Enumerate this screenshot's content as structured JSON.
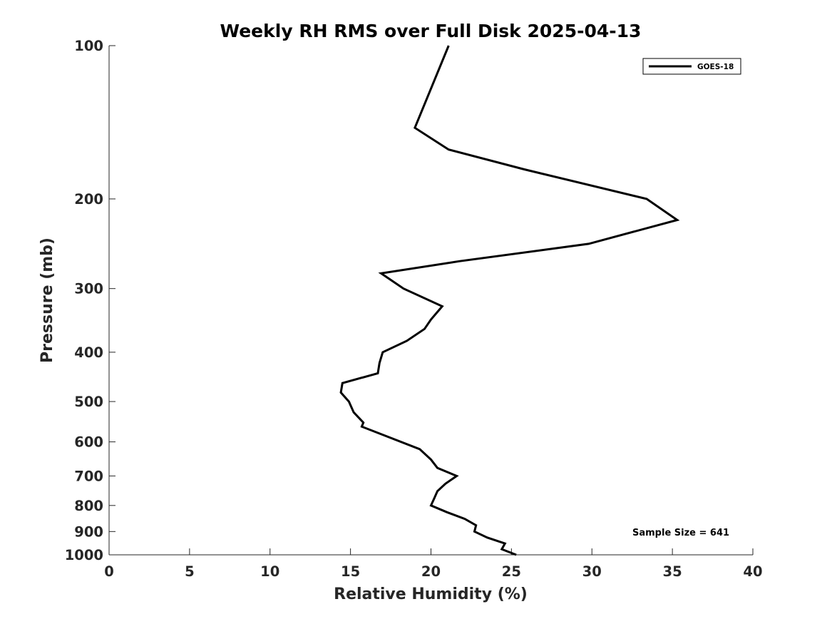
{
  "chart_data": {
    "type": "line",
    "title": "Weekly RH RMS over Full Disk 2025-04-13",
    "xlabel": "Relative Humidity (%)",
    "ylabel": "Pressure (mb)",
    "xlim": [
      0,
      40
    ],
    "ylim": [
      1000,
      100
    ],
    "yscale": "log",
    "grid": false,
    "xticks": [
      0,
      5,
      10,
      15,
      20,
      25,
      30,
      35,
      40
    ],
    "yticks": [
      100,
      200,
      300,
      400,
      500,
      600,
      700,
      800,
      900,
      1000
    ],
    "legend_position": "top-right",
    "annotation": "Sample Size = 641",
    "series": [
      {
        "name": "GOES-18",
        "color": "#000000",
        "points": [
          {
            "x": 25.3,
            "p": 1000
          },
          {
            "x": 24.4,
            "p": 975
          },
          {
            "x": 24.6,
            "p": 950
          },
          {
            "x": 23.5,
            "p": 925
          },
          {
            "x": 22.7,
            "p": 900
          },
          {
            "x": 22.8,
            "p": 875
          },
          {
            "x": 22.1,
            "p": 850
          },
          {
            "x": 21.0,
            "p": 825
          },
          {
            "x": 20.0,
            "p": 800
          },
          {
            "x": 20.2,
            "p": 775
          },
          {
            "x": 20.4,
            "p": 750
          },
          {
            "x": 20.9,
            "p": 725
          },
          {
            "x": 21.6,
            "p": 700
          },
          {
            "x": 20.4,
            "p": 675
          },
          {
            "x": 20.0,
            "p": 650
          },
          {
            "x": 19.3,
            "p": 620
          },
          {
            "x": 15.7,
            "p": 560
          },
          {
            "x": 15.8,
            "p": 550
          },
          {
            "x": 15.2,
            "p": 525
          },
          {
            "x": 14.9,
            "p": 500
          },
          {
            "x": 14.4,
            "p": 480
          },
          {
            "x": 14.5,
            "p": 460
          },
          {
            "x": 16.7,
            "p": 440
          },
          {
            "x": 16.8,
            "p": 420
          },
          {
            "x": 17.0,
            "p": 400
          },
          {
            "x": 18.5,
            "p": 380
          },
          {
            "x": 19.6,
            "p": 360
          },
          {
            "x": 20.0,
            "p": 345
          },
          {
            "x": 20.7,
            "p": 325
          },
          {
            "x": 18.3,
            "p": 300
          },
          {
            "x": 16.9,
            "p": 280
          },
          {
            "x": 21.8,
            "p": 265
          },
          {
            "x": 29.8,
            "p": 245
          },
          {
            "x": 35.3,
            "p": 220
          },
          {
            "x": 33.4,
            "p": 200
          },
          {
            "x": 25.8,
            "p": 175
          },
          {
            "x": 21.1,
            "p": 160
          },
          {
            "x": 19.0,
            "p": 145
          },
          {
            "x": 21.1,
            "p": 100
          }
        ]
      }
    ]
  }
}
